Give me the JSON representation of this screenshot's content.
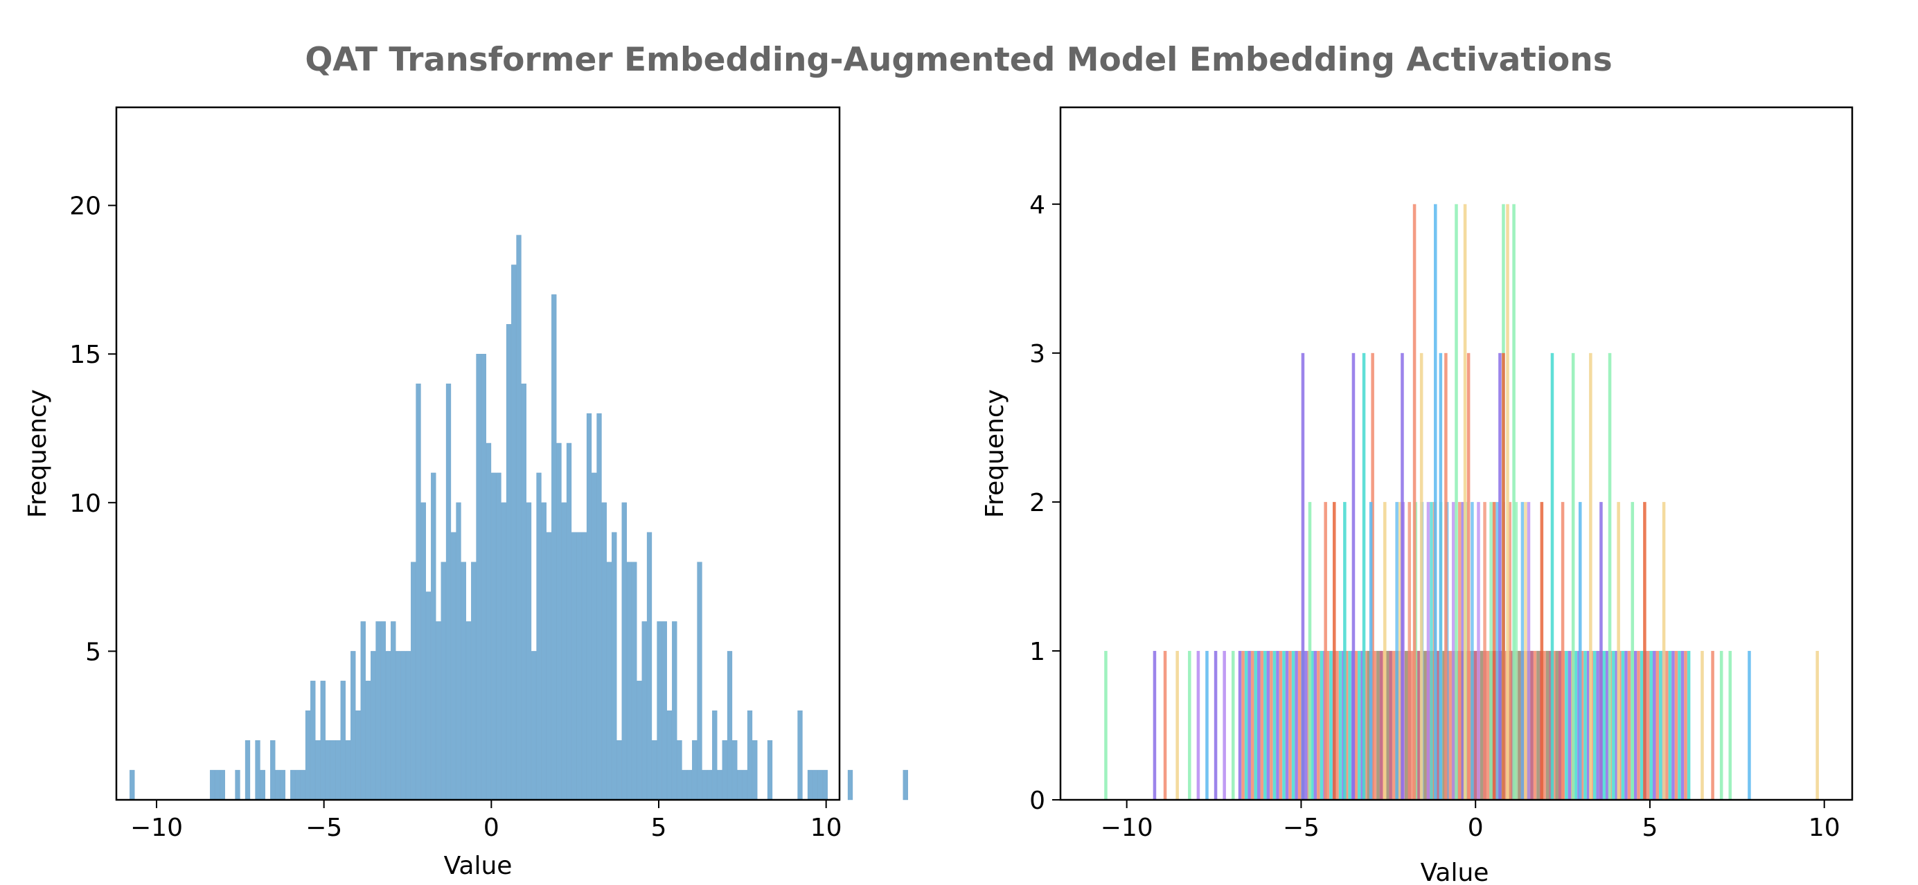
{
  "figure": {
    "suptitle": "QAT Transformer Embedding-Augmented Model Embedding Activations"
  },
  "chart_data": [
    {
      "type": "bar",
      "subtype": "histogram",
      "title": "",
      "xlabel": "Value",
      "ylabel": "Frequency",
      "xlim": [
        -11.2,
        10.4
      ],
      "ylim": [
        0,
        23.3
      ],
      "xticks": [
        -10,
        -5,
        0,
        5,
        10
      ],
      "xtick_labels": [
        "−10",
        "−5",
        "0",
        "5",
        "10"
      ],
      "yticks": [
        5,
        10,
        15,
        20
      ],
      "ytick_labels": [
        "5",
        "10",
        "15",
        "20"
      ],
      "grid": false,
      "legend": "none",
      "bar_color": "#7BAFD4",
      "bin_start": -10.8,
      "bin_width": 0.15,
      "counts": [
        1,
        0,
        0,
        0,
        0,
        0,
        0,
        0,
        0,
        0,
        0,
        0,
        0,
        0,
        0,
        0,
        1,
        1,
        1,
        0,
        0,
        1,
        0,
        2,
        0,
        2,
        1,
        0,
        2,
        1,
        1,
        0,
        1,
        1,
        1,
        3,
        4,
        2,
        4,
        2,
        2,
        2,
        4,
        2,
        5,
        3,
        6,
        4,
        5,
        6,
        6,
        5,
        6,
        5,
        5,
        5,
        8,
        14,
        10,
        7,
        11,
        6,
        8,
        14,
        9,
        10,
        8,
        6,
        8,
        15,
        15,
        12,
        11,
        11,
        10,
        16,
        18,
        19,
        14,
        10,
        5,
        11,
        10,
        9,
        17,
        12,
        10,
        12,
        9,
        9,
        9,
        13,
        11,
        13,
        10,
        8,
        9,
        2,
        10,
        8,
        8,
        4,
        6,
        9,
        2,
        6,
        6,
        3,
        6,
        2,
        1,
        1,
        2,
        8,
        1,
        1,
        3,
        1,
        2,
        5,
        2,
        1,
        1,
        3,
        2,
        0,
        0,
        2,
        0,
        0,
        0,
        0,
        0,
        3,
        0,
        1,
        1,
        1,
        1,
        0,
        0,
        0,
        0,
        1,
        0,
        0,
        0,
        0,
        0,
        0,
        0,
        0,
        0,
        0,
        1
      ]
    },
    {
      "type": "bar",
      "subtype": "overlaid-histograms",
      "title": "",
      "xlabel": "Value",
      "ylabel": "Frequency",
      "xlim": [
        -11.9,
        10.8
      ],
      "ylim": [
        0,
        4.65
      ],
      "xticks": [
        -10,
        -5,
        0,
        5,
        10
      ],
      "xtick_labels": [
        "−10",
        "−5",
        "0",
        "5",
        "10"
      ],
      "yticks": [
        0,
        1,
        2,
        3,
        4
      ],
      "ytick_labels": [
        "0",
        "1",
        "2",
        "3",
        "4"
      ],
      "grid": false,
      "legend": "none",
      "bin_width": 0.09,
      "palette": [
        "#8B6FE8",
        "#5BB8F0",
        "#44D9D0",
        "#8EF0B4",
        "#F2D58E",
        "#F28B6E",
        "#E8653A",
        "#B58AF2"
      ],
      "tall_bars": [
        {
          "x": -1.75,
          "h": 4,
          "c": 5
        },
        {
          "x": -1.15,
          "h": 4,
          "c": 1
        },
        {
          "x": -0.55,
          "h": 4,
          "c": 3
        },
        {
          "x": -0.3,
          "h": 4,
          "c": 4
        },
        {
          "x": 0.8,
          "h": 4,
          "c": 3
        },
        {
          "x": 0.92,
          "h": 4,
          "c": 4
        },
        {
          "x": 1.1,
          "h": 4,
          "c": 3
        },
        {
          "x": -4.95,
          "h": 3,
          "c": 0
        },
        {
          "x": -3.5,
          "h": 3,
          "c": 0
        },
        {
          "x": -3.2,
          "h": 3,
          "c": 2
        },
        {
          "x": -2.95,
          "h": 3,
          "c": 5
        },
        {
          "x": -2.1,
          "h": 3,
          "c": 0
        },
        {
          "x": -1.55,
          "h": 3,
          "c": 4
        },
        {
          "x": -1.0,
          "h": 3,
          "c": 1
        },
        {
          "x": -0.85,
          "h": 3,
          "c": 5
        },
        {
          "x": -0.2,
          "h": 3,
          "c": 5
        },
        {
          "x": 0.7,
          "h": 3,
          "c": 0
        },
        {
          "x": 0.8,
          "h": 3,
          "c": 6
        },
        {
          "x": 2.2,
          "h": 3,
          "c": 2
        },
        {
          "x": 2.8,
          "h": 3,
          "c": 3
        },
        {
          "x": 3.3,
          "h": 3,
          "c": 4
        },
        {
          "x": 3.85,
          "h": 3,
          "c": 3
        },
        {
          "x": -4.75,
          "h": 2,
          "c": 3
        },
        {
          "x": -4.3,
          "h": 2,
          "c": 5
        },
        {
          "x": -4.05,
          "h": 2,
          "c": 6
        },
        {
          "x": -3.75,
          "h": 2,
          "c": 2
        },
        {
          "x": -3.0,
          "h": 2,
          "c": 1
        },
        {
          "x": -2.6,
          "h": 2,
          "c": 4
        },
        {
          "x": 1.9,
          "h": 2,
          "c": 6
        },
        {
          "x": 2.5,
          "h": 2,
          "c": 5
        },
        {
          "x": 3.0,
          "h": 2,
          "c": 1
        },
        {
          "x": 3.6,
          "h": 2,
          "c": 0
        },
        {
          "x": 4.1,
          "h": 2,
          "c": 4
        },
        {
          "x": 4.5,
          "h": 2,
          "c": 3
        },
        {
          "x": 4.85,
          "h": 2,
          "c": 6
        },
        {
          "x": 5.4,
          "h": 2,
          "c": 4
        }
      ],
      "band2": {
        "from": -2.3,
        "to": 1.6,
        "h": 2
      },
      "band1": {
        "from": -6.8,
        "to": 6.2,
        "h": 1
      },
      "single_bars": [
        {
          "x": -10.6,
          "h": 1,
          "c": 3
        },
        {
          "x": -9.2,
          "h": 1,
          "c": 0
        },
        {
          "x": -8.9,
          "h": 1,
          "c": 5
        },
        {
          "x": -8.55,
          "h": 1,
          "c": 4
        },
        {
          "x": -8.2,
          "h": 1,
          "c": 3
        },
        {
          "x": -7.95,
          "h": 1,
          "c": 7
        },
        {
          "x": -7.7,
          "h": 1,
          "c": 1
        },
        {
          "x": -7.45,
          "h": 1,
          "c": 0
        },
        {
          "x": -7.2,
          "h": 1,
          "c": 7
        },
        {
          "x": -6.95,
          "h": 1,
          "c": 3
        },
        {
          "x": 6.5,
          "h": 1,
          "c": 4
        },
        {
          "x": 6.8,
          "h": 1,
          "c": 5
        },
        {
          "x": 7.05,
          "h": 1,
          "c": 3
        },
        {
          "x": 7.3,
          "h": 1,
          "c": 3
        },
        {
          "x": 7.85,
          "h": 1,
          "c": 1
        },
        {
          "x": 9.8,
          "h": 1,
          "c": 4
        }
      ]
    }
  ]
}
